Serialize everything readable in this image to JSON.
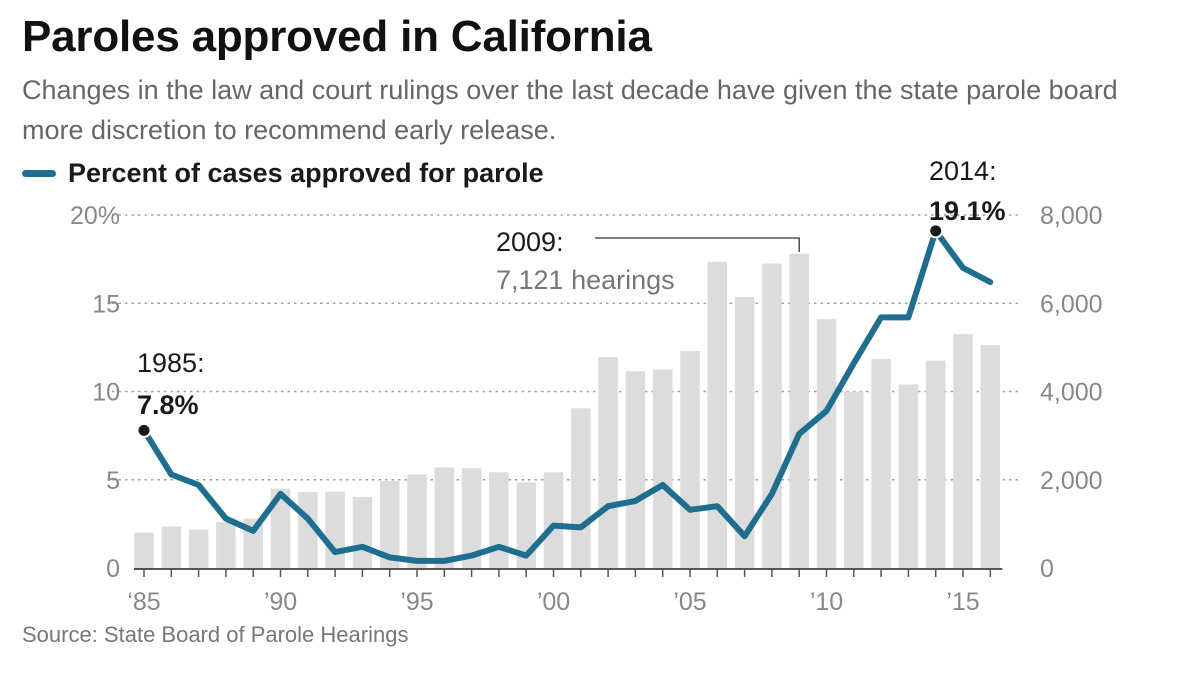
{
  "title": "Paroles approved in California",
  "subtitle": "Changes in the law and court rulings over the last decade have given the state parole board more discretion to recommend early release.",
  "legend": {
    "label": "Percent of cases approved for parole"
  },
  "source": "Source: State Board of Parole Hearings",
  "colors": {
    "line": "#1e6f8f",
    "bars": "#dcdcdc",
    "grid": "#a0a0a0",
    "ticks": "#888888",
    "text": "#1a1a1a",
    "muted": "#777777"
  },
  "chart_data": {
    "type": "bar+line",
    "x": [
      1985,
      1986,
      1987,
      1988,
      1989,
      1990,
      1991,
      1992,
      1993,
      1994,
      1995,
      1996,
      1997,
      1998,
      1999,
      2000,
      2001,
      2002,
      2003,
      2004,
      2005,
      2006,
      2007,
      2008,
      2009,
      2010,
      2011,
      2012,
      2013,
      2014,
      2015,
      2016
    ],
    "x_tick_values": [
      1985,
      1990,
      1995,
      2000,
      2005,
      2010,
      2015
    ],
    "x_tick_labels": [
      "‘85",
      "’90",
      "’95",
      "’00",
      "’05",
      "’10",
      "’15"
    ],
    "series": [
      {
        "name": "Percent of cases approved for parole",
        "kind": "line",
        "axis": "left",
        "values": [
          7.8,
          5.3,
          4.7,
          2.8,
          2.1,
          4.2,
          2.8,
          0.9,
          1.2,
          0.6,
          0.4,
          0.4,
          0.7,
          1.2,
          0.7,
          2.4,
          2.3,
          3.5,
          3.8,
          4.7,
          3.3,
          3.5,
          1.8,
          4.2,
          7.6,
          8.9,
          11.6,
          14.2,
          14.2,
          19.1,
          17.0,
          16.2
        ]
      },
      {
        "kind": "bar",
        "axis": "right",
        "values": [
          800,
          940,
          870,
          1040,
          1120,
          1800,
          1720,
          1730,
          1610,
          1970,
          2120,
          2280,
          2260,
          2170,
          1940,
          2170,
          3620,
          4780,
          4460,
          4500,
          4920,
          6940,
          6140,
          6900,
          7121,
          5640,
          4000,
          4740,
          4160,
          4700,
          5300,
          5050
        ]
      }
    ],
    "left_axis": {
      "ylim": [
        0,
        20
      ],
      "ticks": [
        0,
        5,
        10,
        15,
        20
      ],
      "tick_labels": [
        "0",
        "5",
        "10",
        "15",
        "20%"
      ]
    },
    "right_axis": {
      "ylim": [
        0,
        8000
      ],
      "ticks": [
        0,
        2000,
        4000,
        6000,
        8000
      ],
      "tick_labels": [
        "0",
        "2,000",
        "4,000",
        "6,000",
        "8,000"
      ]
    },
    "grid": true,
    "annotations": [
      {
        "year": 1985,
        "label": "1985:",
        "value_label": "7.8%"
      },
      {
        "year": 2009,
        "label": "2009:",
        "value_label": "7,121 hearings"
      },
      {
        "year": 2014,
        "label": "2014:",
        "value_label": "19.1%"
      }
    ]
  }
}
